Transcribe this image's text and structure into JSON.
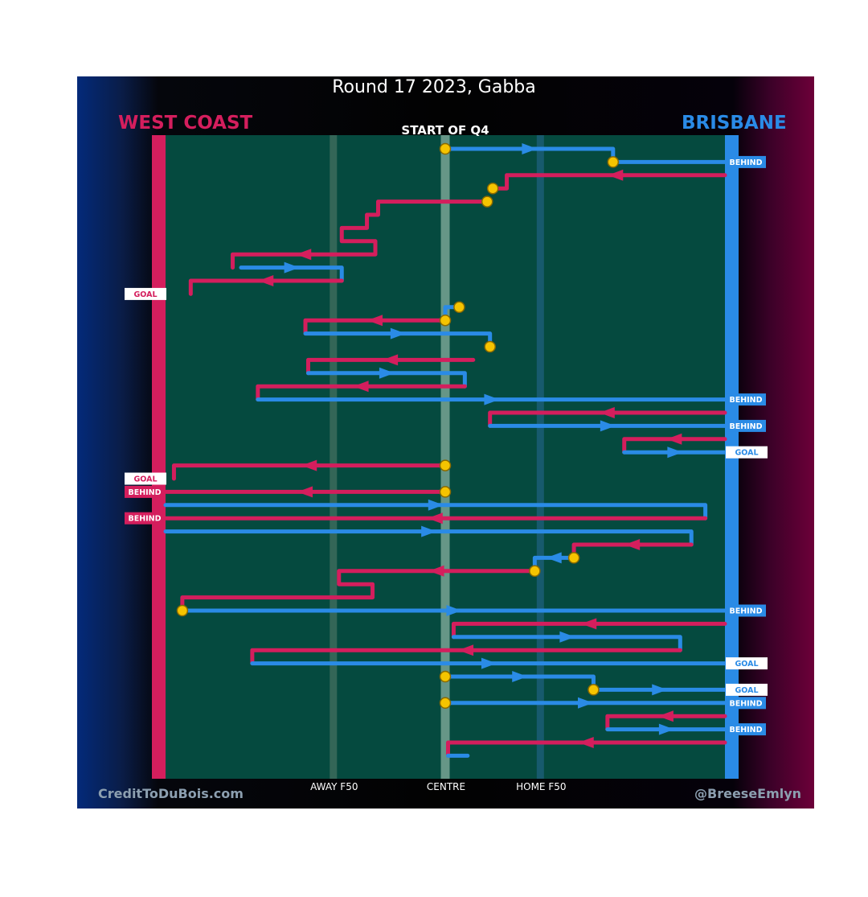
{
  "title": "Round 17 2023, Gabba",
  "subtitle": "START OF Q4",
  "teams": {
    "left": {
      "name": "WEST COAST",
      "color": "#d41e5d"
    },
    "right": {
      "name": "BRISBANE",
      "color": "#2a8be6"
    }
  },
  "footer": {
    "left": "CreditToDuBois.com",
    "right": "@BreeseEmlyn"
  },
  "field_color": "#054a3f",
  "chart_data": {
    "type": "line",
    "x_axis": {
      "range": [
        0,
        100
      ],
      "ticks": [
        {
          "value": 30,
          "label": "AWAY F50"
        },
        {
          "value": 50,
          "label": "CENTRE"
        },
        {
          "value": 67,
          "label": "HOME F50"
        }
      ]
    },
    "series": [
      {
        "team": "brisbane",
        "points": [
          [
            50,
            0
          ],
          [
            80,
            0
          ],
          [
            80,
            1
          ],
          [
            100,
            1
          ]
        ],
        "result": "BEHIND",
        "start_marker": true,
        "mid_marker": true
      },
      {
        "team": "westcoast",
        "points": [
          [
            100,
            2
          ],
          [
            61,
            2
          ],
          [
            61,
            3
          ],
          [
            58.5,
            3
          ]
        ],
        "start_marker": false,
        "end_marker": true
      },
      {
        "team": "westcoast",
        "points": [
          [
            57.5,
            4
          ],
          [
            38,
            4
          ],
          [
            38,
            5
          ],
          [
            36,
            5
          ],
          [
            36,
            6
          ],
          [
            31.5,
            6
          ],
          [
            31.5,
            7
          ],
          [
            37.5,
            7
          ],
          [
            37.5,
            8
          ],
          [
            12,
            8
          ],
          [
            12,
            9
          ]
        ],
        "start_marker": true
      },
      {
        "team": "brisbane",
        "points": [
          [
            13.5,
            9
          ],
          [
            31.5,
            9
          ],
          [
            31.5,
            10
          ]
        ]
      },
      {
        "team": "westcoast",
        "points": [
          [
            31.5,
            10
          ],
          [
            4.5,
            10
          ],
          [
            4.5,
            11
          ]
        ],
        "result": "GOAL"
      },
      {
        "team": "brisbane",
        "points": [
          [
            52.5,
            12
          ],
          [
            50,
            12
          ],
          [
            50,
            13
          ]
        ],
        "start_marker": true,
        "end_marker": true
      },
      {
        "team": "westcoast",
        "points": [
          [
            50,
            13
          ],
          [
            25,
            13
          ],
          [
            25,
            14
          ]
        ]
      },
      {
        "team": "brisbane",
        "points": [
          [
            25,
            14
          ],
          [
            58,
            14
          ],
          [
            58,
            15
          ]
        ],
        "end_marker": true
      },
      {
        "team": "westcoast",
        "points": [
          [
            55,
            16
          ],
          [
            25.5,
            16
          ],
          [
            25.5,
            17
          ]
        ]
      },
      {
        "team": "brisbane",
        "points": [
          [
            25.5,
            17
          ],
          [
            53.5,
            17
          ],
          [
            53.5,
            18
          ]
        ]
      },
      {
        "team": "westcoast",
        "points": [
          [
            53.5,
            18
          ],
          [
            16.5,
            18
          ],
          [
            16.5,
            19
          ]
        ]
      },
      {
        "team": "brisbane",
        "points": [
          [
            16.5,
            19
          ],
          [
            100,
            19
          ]
        ],
        "result": "BEHIND"
      },
      {
        "team": "westcoast",
        "points": [
          [
            100,
            20
          ],
          [
            58,
            20
          ],
          [
            58,
            21
          ]
        ]
      },
      {
        "team": "brisbane",
        "points": [
          [
            58,
            21
          ],
          [
            100,
            21
          ]
        ],
        "result": "BEHIND"
      },
      {
        "team": "westcoast",
        "points": [
          [
            100,
            22
          ],
          [
            82,
            22
          ],
          [
            82,
            23
          ]
        ]
      },
      {
        "team": "brisbane",
        "points": [
          [
            82,
            23
          ],
          [
            100,
            23
          ]
        ],
        "result": "GOAL"
      },
      {
        "team": "westcoast",
        "points": [
          [
            50,
            24
          ],
          [
            1.5,
            24
          ],
          [
            1.5,
            25
          ]
        ],
        "start_marker": true,
        "result": "GOAL"
      },
      {
        "team": "westcoast",
        "points": [
          [
            50,
            26
          ],
          [
            0,
            26
          ]
        ],
        "start_marker": true,
        "result": "BEHIND"
      },
      {
        "team": "brisbane",
        "points": [
          [
            0,
            27
          ],
          [
            96.5,
            27
          ],
          [
            96.5,
            28
          ]
        ]
      },
      {
        "team": "westcoast",
        "points": [
          [
            96.5,
            28
          ],
          [
            0,
            28
          ]
        ],
        "result": "BEHIND"
      },
      {
        "team": "brisbane",
        "points": [
          [
            0,
            29
          ],
          [
            94,
            29
          ],
          [
            94,
            30
          ]
        ]
      },
      {
        "team": "westcoast",
        "points": [
          [
            94,
            30
          ],
          [
            73,
            30
          ],
          [
            73,
            31
          ]
        ]
      },
      {
        "team": "brisbane",
        "points": [
          [
            73,
            31
          ],
          [
            66,
            31
          ],
          [
            66,
            32
          ]
        ],
        "start_marker": true,
        "end_marker": true
      },
      {
        "team": "westcoast",
        "points": [
          [
            66,
            32
          ],
          [
            31,
            32
          ],
          [
            31,
            33
          ],
          [
            37,
            33
          ],
          [
            37,
            34
          ],
          [
            3,
            34
          ],
          [
            3,
            35
          ]
        ]
      },
      {
        "team": "brisbane",
        "points": [
          [
            3,
            35
          ],
          [
            100,
            35
          ]
        ],
        "start_marker": true,
        "result": "BEHIND"
      },
      {
        "team": "westcoast",
        "points": [
          [
            100,
            36
          ],
          [
            51.5,
            36
          ],
          [
            51.5,
            37
          ]
        ]
      },
      {
        "team": "brisbane",
        "points": [
          [
            51.5,
            37
          ],
          [
            92,
            37
          ],
          [
            92,
            38
          ]
        ]
      },
      {
        "team": "westcoast",
        "points": [
          [
            92,
            38
          ],
          [
            15.5,
            38
          ],
          [
            15.5,
            39
          ]
        ]
      },
      {
        "team": "brisbane",
        "points": [
          [
            15.5,
            39
          ],
          [
            100,
            39
          ]
        ],
        "result": "GOAL"
      },
      {
        "team": "brisbane",
        "points": [
          [
            50,
            40
          ],
          [
            76.5,
            40
          ],
          [
            76.5,
            41
          ]
        ],
        "start_marker": true,
        "end_marker": true
      },
      {
        "team": "brisbane",
        "points": [
          [
            76.5,
            41
          ],
          [
            100,
            41
          ]
        ],
        "result": "GOAL"
      },
      {
        "team": "brisbane",
        "points": [
          [
            50,
            42
          ],
          [
            100,
            42
          ]
        ],
        "start_marker": true,
        "result": "BEHIND"
      },
      {
        "team": "westcoast",
        "points": [
          [
            100,
            43
          ],
          [
            79,
            43
          ],
          [
            79,
            44
          ]
        ]
      },
      {
        "team": "brisbane",
        "points": [
          [
            79,
            44
          ],
          [
            100,
            44
          ]
        ],
        "result": "BEHIND"
      },
      {
        "team": "westcoast",
        "points": [
          [
            100,
            45
          ],
          [
            50.5,
            45
          ],
          [
            50.5,
            46
          ]
        ]
      },
      {
        "team": "brisbane",
        "points": [
          [
            50.5,
            46
          ],
          [
            54,
            46
          ]
        ]
      }
    ],
    "result_labels": {
      "goal": "GOAL",
      "behind": "BEHIND"
    }
  }
}
